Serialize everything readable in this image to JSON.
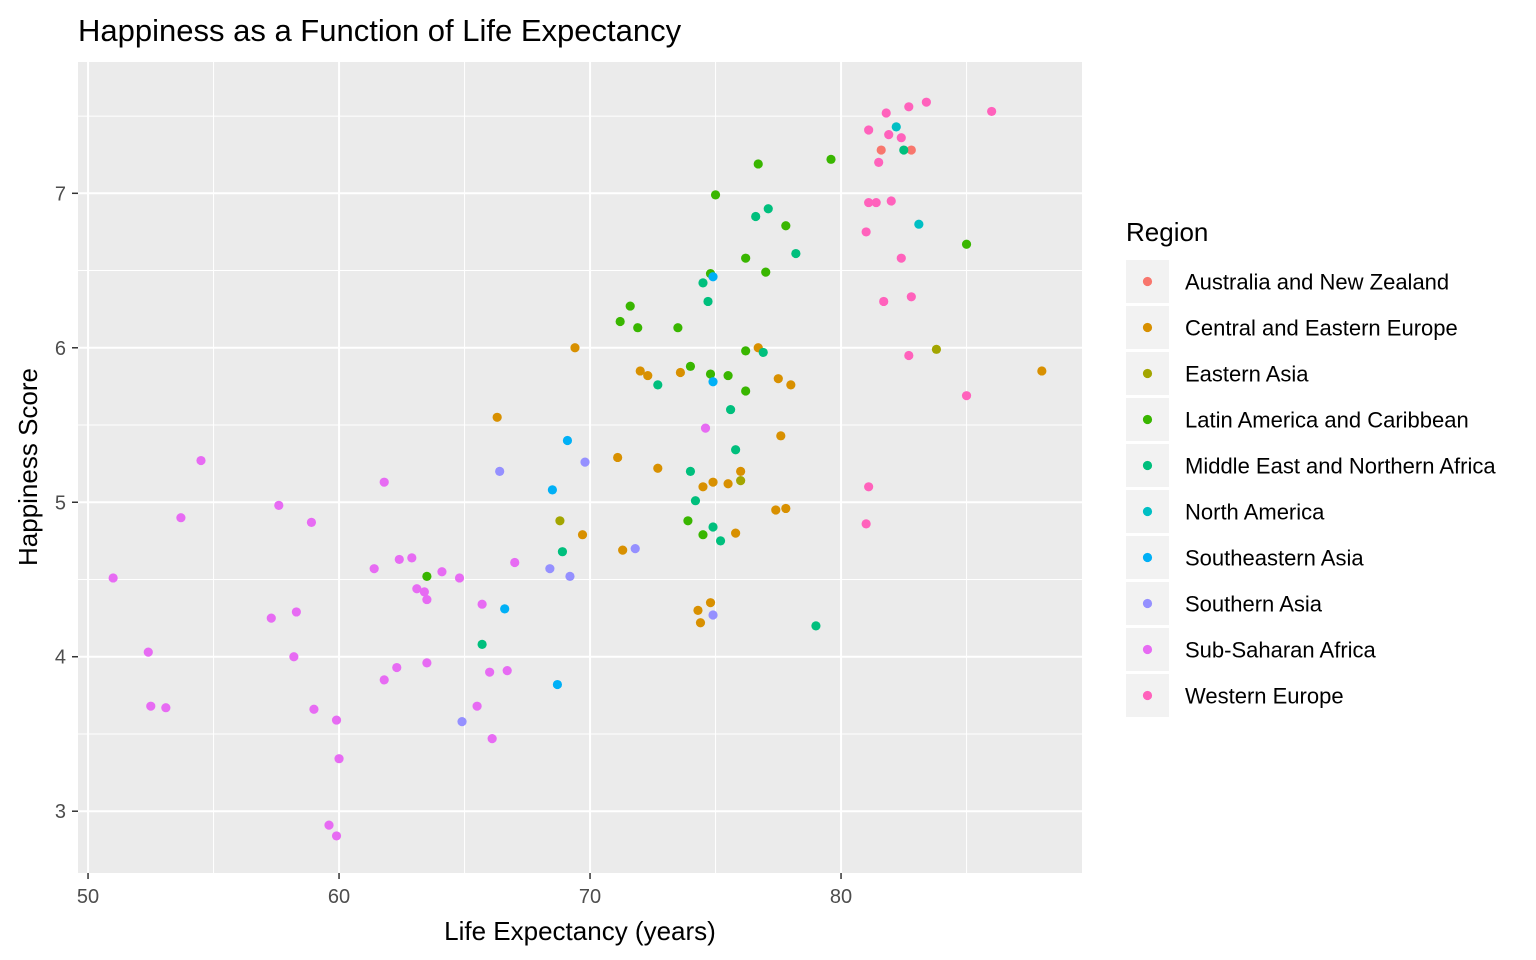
{
  "chart_data": {
    "type": "scatter",
    "title": "Happiness as a Function of Life Expectancy",
    "xlabel": "Life Expectancy (years)",
    "ylabel": "Happiness Score",
    "xlim": [
      49.6,
      89.6
    ],
    "ylim": [
      2.6,
      7.85
    ],
    "xticks": [
      50,
      60,
      70,
      80
    ],
    "yticks": [
      3,
      4,
      5,
      6,
      7
    ],
    "grid": true,
    "legend": {
      "title": "Region",
      "placement": "right"
    },
    "series": [
      {
        "name": "Australia and New Zealand",
        "color": "#F8766D",
        "points": [
          [
            81.6,
            7.28
          ],
          [
            82.8,
            7.28
          ]
        ]
      },
      {
        "name": "Central and Eastern Europe",
        "color": "#D89000",
        "points": [
          [
            69.4,
            6.0
          ],
          [
            76.7,
            6.0
          ],
          [
            88.0,
            5.85
          ],
          [
            72.0,
            5.85
          ],
          [
            72.3,
            5.82
          ],
          [
            73.6,
            5.84
          ],
          [
            77.5,
            5.8
          ],
          [
            78.0,
            5.76
          ],
          [
            66.3,
            5.55
          ],
          [
            77.6,
            5.43
          ],
          [
            71.1,
            5.29
          ],
          [
            72.7,
            5.22
          ],
          [
            76.0,
            5.2
          ],
          [
            74.9,
            5.13
          ],
          [
            75.5,
            5.12
          ],
          [
            74.5,
            5.1
          ],
          [
            77.8,
            4.96
          ],
          [
            77.4,
            4.95
          ],
          [
            69.7,
            4.79
          ],
          [
            75.8,
            4.8
          ],
          [
            71.3,
            4.69
          ],
          [
            74.8,
            4.35
          ],
          [
            74.3,
            4.3
          ],
          [
            74.4,
            4.22
          ]
        ]
      },
      {
        "name": "Eastern Asia",
        "color": "#A3A500",
        "points": [
          [
            83.8,
            5.99
          ],
          [
            76.0,
            5.14
          ],
          [
            68.8,
            4.88
          ]
        ]
      },
      {
        "name": "Latin America and Caribbean",
        "color": "#39B600",
        "points": [
          [
            76.7,
            7.19
          ],
          [
            75.0,
            6.99
          ],
          [
            79.6,
            7.22
          ],
          [
            85.0,
            6.67
          ],
          [
            76.2,
            6.58
          ],
          [
            77.0,
            6.49
          ],
          [
            74.8,
            6.48
          ],
          [
            71.6,
            6.27
          ],
          [
            71.2,
            6.17
          ],
          [
            71.9,
            6.13
          ],
          [
            73.5,
            6.13
          ],
          [
            76.2,
            5.98
          ],
          [
            74.0,
            5.88
          ],
          [
            74.8,
            5.83
          ],
          [
            75.5,
            5.82
          ],
          [
            76.2,
            5.72
          ],
          [
            73.9,
            4.88
          ],
          [
            74.5,
            4.79
          ],
          [
            63.5,
            4.52
          ],
          [
            77.8,
            6.79
          ]
        ]
      },
      {
        "name": "Middle East and Northern Africa",
        "color": "#00BF7D",
        "points": [
          [
            82.5,
            7.28
          ],
          [
            77.1,
            6.9
          ],
          [
            76.6,
            6.85
          ],
          [
            78.2,
            6.61
          ],
          [
            74.5,
            6.42
          ],
          [
            74.7,
            6.3
          ],
          [
            76.9,
            5.97
          ],
          [
            72.7,
            5.76
          ],
          [
            75.6,
            5.6
          ],
          [
            75.8,
            5.34
          ],
          [
            74.0,
            5.2
          ],
          [
            74.2,
            5.01
          ],
          [
            74.9,
            4.84
          ],
          [
            75.2,
            4.75
          ],
          [
            68.9,
            4.68
          ],
          [
            65.7,
            4.08
          ],
          [
            79.0,
            4.2
          ]
        ]
      },
      {
        "name": "North America",
        "color": "#00BFC4",
        "points": [
          [
            82.2,
            7.43
          ],
          [
            83.1,
            6.8
          ]
        ]
      },
      {
        "name": "Southeastern Asia",
        "color": "#00B0F6",
        "points": [
          [
            74.9,
            6.46
          ],
          [
            74.9,
            5.78
          ],
          [
            69.1,
            5.4
          ],
          [
            68.5,
            5.08
          ],
          [
            66.6,
            4.31
          ],
          [
            68.7,
            3.82
          ]
        ]
      },
      {
        "name": "Southern Asia",
        "color": "#9590FF",
        "points": [
          [
            69.8,
            5.26
          ],
          [
            66.4,
            5.2
          ],
          [
            71.8,
            4.7
          ],
          [
            68.4,
            4.57
          ],
          [
            69.2,
            4.52
          ],
          [
            74.9,
            4.27
          ],
          [
            64.9,
            3.58
          ]
        ]
      },
      {
        "name": "Sub-Saharan Africa",
        "color": "#E76BF3",
        "points": [
          [
            54.5,
            5.27
          ],
          [
            53.7,
            4.9
          ],
          [
            57.6,
            4.98
          ],
          [
            58.9,
            4.87
          ],
          [
            61.8,
            5.13
          ],
          [
            74.6,
            5.48
          ],
          [
            51.0,
            4.51
          ],
          [
            52.4,
            4.03
          ],
          [
            52.5,
            3.68
          ],
          [
            53.1,
            3.67
          ],
          [
            57.3,
            4.25
          ],
          [
            58.3,
            4.29
          ],
          [
            58.2,
            4.0
          ],
          [
            59.0,
            3.66
          ],
          [
            59.9,
            3.59
          ],
          [
            60.0,
            3.34
          ],
          [
            59.6,
            2.91
          ],
          [
            59.9,
            2.84
          ],
          [
            61.4,
            4.57
          ],
          [
            62.4,
            4.63
          ],
          [
            62.9,
            4.64
          ],
          [
            63.1,
            4.44
          ],
          [
            63.4,
            4.42
          ],
          [
            63.5,
            4.37
          ],
          [
            64.1,
            4.55
          ],
          [
            64.8,
            4.51
          ],
          [
            65.7,
            4.34
          ],
          [
            67.0,
            4.61
          ],
          [
            61.8,
            3.85
          ],
          [
            62.3,
            3.93
          ],
          [
            63.5,
            3.96
          ],
          [
            66.0,
            3.9
          ],
          [
            66.7,
            3.91
          ],
          [
            65.5,
            3.68
          ],
          [
            66.1,
            3.47
          ]
        ]
      },
      {
        "name": "Western Europe",
        "color": "#FF62BC",
        "points": [
          [
            83.4,
            7.59
          ],
          [
            82.7,
            7.56
          ],
          [
            86.0,
            7.53
          ],
          [
            81.8,
            7.52
          ],
          [
            81.1,
            7.41
          ],
          [
            81.9,
            7.38
          ],
          [
            82.4,
            7.36
          ],
          [
            81.5,
            7.2
          ],
          [
            81.1,
            6.94
          ],
          [
            81.4,
            6.94
          ],
          [
            82.0,
            6.95
          ],
          [
            81.0,
            6.75
          ],
          [
            82.4,
            6.58
          ],
          [
            81.7,
            6.3
          ],
          [
            82.8,
            6.33
          ],
          [
            82.7,
            5.95
          ],
          [
            85.0,
            5.69
          ],
          [
            81.1,
            5.1
          ],
          [
            81.0,
            4.86
          ]
        ]
      }
    ]
  }
}
